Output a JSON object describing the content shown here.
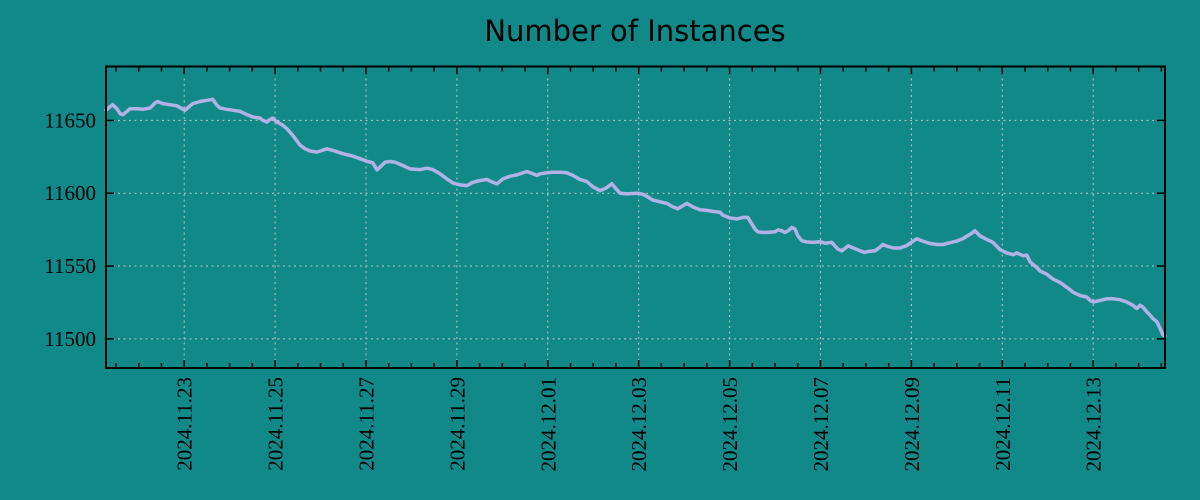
{
  "title": "Number of Instances",
  "colors": {
    "background": "#128989",
    "line": "#b2b2e6",
    "grid": "#c6c6c6",
    "axis": "#000000",
    "text": "#000000"
  },
  "chart_data": {
    "type": "line",
    "title": "Number of Instances",
    "xlabel": "",
    "ylabel": "",
    "grid": true,
    "legend_visible": false,
    "x_axis": {
      "unit": "date",
      "range_days": [
        0,
        23.3
      ],
      "tick_labels": [
        "2024.11.23",
        "2024.11.25",
        "2024.11.27",
        "2024.11.29",
        "2024.12.01",
        "2024.12.03",
        "2024.12.05",
        "2024.12.07",
        "2024.12.09",
        "2024.12.11",
        "2024.12.13"
      ],
      "tick_positions_days": [
        1.72,
        3.72,
        5.72,
        7.72,
        9.72,
        11.72,
        13.72,
        15.72,
        17.72,
        19.72,
        21.72
      ],
      "minor_tick_start_day": 0.22,
      "minor_tick_interval_days": 0.5,
      "label_rotation_deg": -90
    },
    "y_axis": {
      "range": [
        11480,
        11687
      ],
      "tick_values": [
        11500,
        11550,
        11600,
        11650
      ]
    },
    "series": [
      {
        "name": "instances",
        "color": "#b2b2e6",
        "points": [
          [
            0.0,
            11657.0
          ],
          [
            0.09,
            11659.5
          ],
          [
            0.15,
            11660.8
          ],
          [
            0.24,
            11658.0
          ],
          [
            0.31,
            11654.6
          ],
          [
            0.37,
            11653.9
          ],
          [
            0.46,
            11656.2
          ],
          [
            0.53,
            11658.0
          ],
          [
            0.68,
            11658.0
          ],
          [
            0.81,
            11657.6
          ],
          [
            0.97,
            11658.5
          ],
          [
            1.08,
            11662.0
          ],
          [
            1.14,
            11663.0
          ],
          [
            1.25,
            11661.5
          ],
          [
            1.41,
            11660.8
          ],
          [
            1.56,
            11660.0
          ],
          [
            1.67,
            11658.0
          ],
          [
            1.74,
            11657.0
          ],
          [
            1.85,
            11660.0
          ],
          [
            1.91,
            11661.5
          ],
          [
            2.07,
            11663.0
          ],
          [
            2.22,
            11663.8
          ],
          [
            2.35,
            11664.5
          ],
          [
            2.44,
            11660.4
          ],
          [
            2.51,
            11658.5
          ],
          [
            2.66,
            11657.6
          ],
          [
            2.79,
            11657.0
          ],
          [
            2.95,
            11656.2
          ],
          [
            3.1,
            11654.0
          ],
          [
            3.23,
            11652.3
          ],
          [
            3.39,
            11651.6
          ],
          [
            3.45,
            11650.0
          ],
          [
            3.54,
            11648.9
          ],
          [
            3.61,
            11650.7
          ],
          [
            3.67,
            11651.6
          ],
          [
            3.76,
            11648.9
          ],
          [
            3.83,
            11647.7
          ],
          [
            3.89,
            11646.6
          ],
          [
            3.98,
            11644.3
          ],
          [
            4.11,
            11639.7
          ],
          [
            4.27,
            11633.0
          ],
          [
            4.38,
            11630.5
          ],
          [
            4.49,
            11629.0
          ],
          [
            4.64,
            11628.2
          ],
          [
            4.86,
            11630.5
          ],
          [
            4.99,
            11629.4
          ],
          [
            5.21,
            11627.1
          ],
          [
            5.43,
            11625.5
          ],
          [
            5.65,
            11623.0
          ],
          [
            5.76,
            11621.8
          ],
          [
            5.87,
            11620.9
          ],
          [
            5.96,
            11616.0
          ],
          [
            6.03,
            11617.9
          ],
          [
            6.14,
            11621.3
          ],
          [
            6.25,
            11621.8
          ],
          [
            6.36,
            11621.3
          ],
          [
            6.53,
            11619.0
          ],
          [
            6.69,
            11616.7
          ],
          [
            6.91,
            11616.2
          ],
          [
            7.06,
            11617.2
          ],
          [
            7.19,
            11616.2
          ],
          [
            7.35,
            11613.3
          ],
          [
            7.5,
            11609.8
          ],
          [
            7.63,
            11607.1
          ],
          [
            7.79,
            11605.7
          ],
          [
            7.94,
            11605.2
          ],
          [
            8.07,
            11607.5
          ],
          [
            8.23,
            11608.7
          ],
          [
            8.38,
            11609.4
          ],
          [
            8.51,
            11607.5
          ],
          [
            8.6,
            11606.4
          ],
          [
            8.73,
            11609.8
          ],
          [
            8.89,
            11611.7
          ],
          [
            9.04,
            11612.6
          ],
          [
            9.17,
            11614.0
          ],
          [
            9.26,
            11614.9
          ],
          [
            9.39,
            11613.3
          ],
          [
            9.48,
            11612.2
          ],
          [
            9.55,
            11613.3
          ],
          [
            9.7,
            11614.0
          ],
          [
            9.83,
            11614.4
          ],
          [
            9.99,
            11614.4
          ],
          [
            10.14,
            11614.0
          ],
          [
            10.27,
            11612.2
          ],
          [
            10.43,
            11609.4
          ],
          [
            10.58,
            11608.0
          ],
          [
            10.71,
            11604.5
          ],
          [
            10.87,
            11601.8
          ],
          [
            11.0,
            11603.5
          ],
          [
            11.13,
            11606.5
          ],
          [
            11.22,
            11603.0
          ],
          [
            11.31,
            11600.0
          ],
          [
            11.46,
            11599.5
          ],
          [
            11.59,
            11599.8
          ],
          [
            11.7,
            11600.0
          ],
          [
            11.81,
            11599.3
          ],
          [
            11.92,
            11597.5
          ],
          [
            12.03,
            11595.3
          ],
          [
            12.19,
            11594.1
          ],
          [
            12.34,
            11593.0
          ],
          [
            12.47,
            11590.6
          ],
          [
            12.58,
            11589.4
          ],
          [
            12.78,
            11593.0
          ],
          [
            12.91,
            11590.6
          ],
          [
            13.07,
            11588.7
          ],
          [
            13.22,
            11588.2
          ],
          [
            13.35,
            11587.5
          ],
          [
            13.51,
            11587.0
          ],
          [
            13.57,
            11585.0
          ],
          [
            13.73,
            11583.0
          ],
          [
            13.88,
            11582.4
          ],
          [
            14.01,
            11583.4
          ],
          [
            14.12,
            11583.4
          ],
          [
            14.21,
            11578.8
          ],
          [
            14.28,
            11575.4
          ],
          [
            14.34,
            11573.5
          ],
          [
            14.43,
            11573.1
          ],
          [
            14.56,
            11573.1
          ],
          [
            14.72,
            11573.5
          ],
          [
            14.79,
            11574.9
          ],
          [
            14.87,
            11574.2
          ],
          [
            14.94,
            11573.1
          ],
          [
            15.01,
            11574.2
          ],
          [
            15.09,
            11576.5
          ],
          [
            15.16,
            11575.4
          ],
          [
            15.22,
            11570.8
          ],
          [
            15.31,
            11567.4
          ],
          [
            15.42,
            11566.5
          ],
          [
            15.56,
            11566.2
          ],
          [
            15.71,
            11566.7
          ],
          [
            15.82,
            11565.7
          ],
          [
            15.97,
            11566.2
          ],
          [
            16.1,
            11561.6
          ],
          [
            16.19,
            11560.5
          ],
          [
            16.26,
            11562.1
          ],
          [
            16.33,
            11563.9
          ],
          [
            16.41,
            11562.8
          ],
          [
            16.59,
            11560.5
          ],
          [
            16.68,
            11559.4
          ],
          [
            16.77,
            11560.0
          ],
          [
            16.92,
            11560.5
          ],
          [
            17.03,
            11563.0
          ],
          [
            17.09,
            11564.8
          ],
          [
            17.18,
            11563.6
          ],
          [
            17.32,
            11562.4
          ],
          [
            17.47,
            11562.4
          ],
          [
            17.62,
            11564.1
          ],
          [
            17.76,
            11567.1
          ],
          [
            17.84,
            11568.8
          ],
          [
            17.97,
            11567.1
          ],
          [
            18.13,
            11565.5
          ],
          [
            18.28,
            11564.8
          ],
          [
            18.42,
            11564.8
          ],
          [
            18.57,
            11566.0
          ],
          [
            18.72,
            11567.1
          ],
          [
            18.85,
            11568.8
          ],
          [
            19.01,
            11571.8
          ],
          [
            19.12,
            11574.2
          ],
          [
            19.23,
            11570.7
          ],
          [
            19.38,
            11568.3
          ],
          [
            19.51,
            11566.4
          ],
          [
            19.67,
            11561.3
          ],
          [
            19.82,
            11559.0
          ],
          [
            19.96,
            11557.8
          ],
          [
            20.04,
            11559.0
          ],
          [
            20.18,
            11557.0
          ],
          [
            20.26,
            11557.5
          ],
          [
            20.33,
            11553.0
          ],
          [
            20.4,
            11551.0
          ],
          [
            20.48,
            11549.0
          ],
          [
            20.55,
            11546.6
          ],
          [
            20.7,
            11544.4
          ],
          [
            20.84,
            11541.0
          ],
          [
            20.99,
            11538.8
          ],
          [
            21.14,
            11535.4
          ],
          [
            21.28,
            11532.0
          ],
          [
            21.43,
            11529.8
          ],
          [
            21.58,
            11528.7
          ],
          [
            21.65,
            11526.4
          ],
          [
            21.72,
            11525.3
          ],
          [
            21.87,
            11526.4
          ],
          [
            22.02,
            11527.5
          ],
          [
            22.16,
            11527.5
          ],
          [
            22.31,
            11526.9
          ],
          [
            22.46,
            11525.3
          ],
          [
            22.59,
            11523.1
          ],
          [
            22.68,
            11520.8
          ],
          [
            22.75,
            11523.1
          ],
          [
            22.81,
            11521.9
          ],
          [
            22.9,
            11518.6
          ],
          [
            22.97,
            11516.3
          ],
          [
            23.03,
            11514.1
          ],
          [
            23.12,
            11511.8
          ],
          [
            23.19,
            11507.3
          ],
          [
            23.25,
            11503.0
          ],
          [
            23.3,
            11502.0
          ]
        ]
      }
    ]
  }
}
